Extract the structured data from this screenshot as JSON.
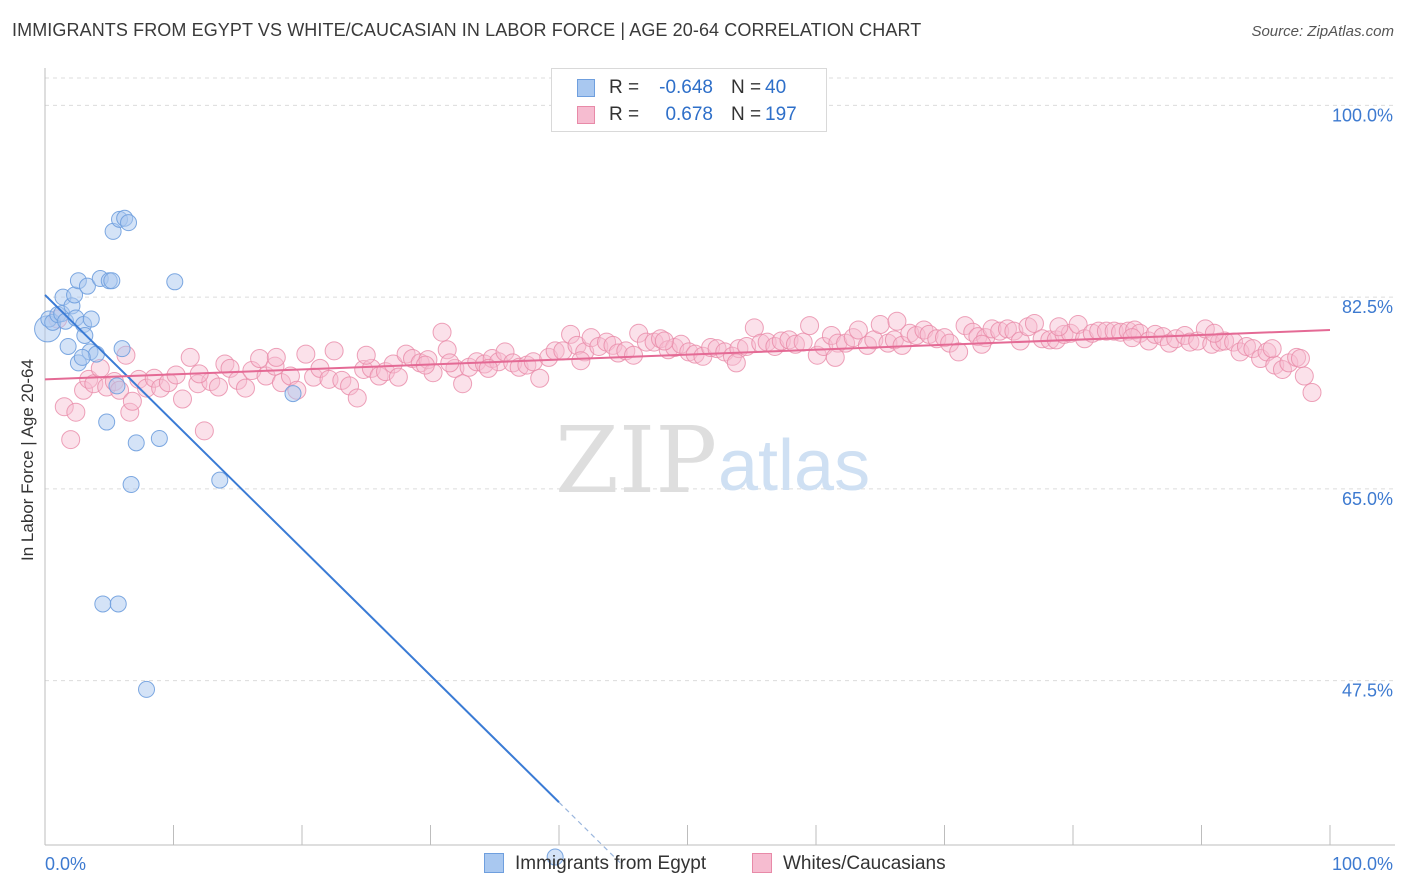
{
  "title": "IMMIGRANTS FROM EGYPT VS WHITE/CAUCASIAN IN LABOR FORCE | AGE 20-64 CORRELATION CHART",
  "source": "Source: ZipAtlas.com",
  "watermark": {
    "zip": "ZIP",
    "atlas": "atlas"
  },
  "legend": {
    "rows": [
      {
        "r_label": "R =",
        "r_value": "-0.648",
        "n_label": "N =",
        "n_value": "40",
        "color": "#a9c8f0",
        "border": "#6f9fde"
      },
      {
        "r_label": "R =",
        "r_value": "0.678",
        "n_label": "N =",
        "n_value": "197",
        "color": "#f6bcd0",
        "border": "#e88aa8"
      }
    ]
  },
  "bottom_legend": [
    {
      "label": "Immigrants from Egypt",
      "color": "#a9c8f0",
      "border": "#6f9fde"
    },
    {
      "label": "Whites/Caucasians",
      "color": "#f6bcd0",
      "border": "#e88aa8"
    }
  ],
  "chart_data": {
    "type": "scatter",
    "xlabel": "",
    "ylabel": "In Labor Force | Age 20-64",
    "xlim": [
      0,
      100
    ],
    "ylim": [
      32.5,
      102.5
    ],
    "x_tick_labels": [
      "0.0%",
      "100.0%"
    ],
    "y_ticks": [
      47.5,
      65.0,
      82.5,
      100.0
    ],
    "y_tick_labels": [
      "47.5%",
      "65.0%",
      "82.5%",
      "100.0%"
    ],
    "grid": true,
    "colors": {
      "egypt": "#6f9fde",
      "egypt_fill": "#a9c8f0",
      "egypt_line": "#3a7bd5",
      "white": "#e88aa8",
      "white_fill": "#f6bcd0",
      "white_line": "#e46a95",
      "axis_text": "#3d7ad0"
    },
    "series": [
      {
        "name": "Immigrants from Egypt",
        "points": [
          [
            0.2,
            79.6
          ],
          [
            0.3,
            80.5
          ],
          [
            0.6,
            80.2
          ],
          [
            1.0,
            80.9
          ],
          [
            1.3,
            81.0
          ],
          [
            1.6,
            80.3
          ],
          [
            1.4,
            82.5
          ],
          [
            2.1,
            81.7
          ],
          [
            2.3,
            82.7
          ],
          [
            2.4,
            80.6
          ],
          [
            2.6,
            76.5
          ],
          [
            2.6,
            84.0
          ],
          [
            3.0,
            80.0
          ],
          [
            3.1,
            79.0
          ],
          [
            3.3,
            83.5
          ],
          [
            3.5,
            77.5
          ],
          [
            3.6,
            80.5
          ],
          [
            4.0,
            77.3
          ],
          [
            4.3,
            84.2
          ],
          [
            4.8,
            71.1
          ],
          [
            5.0,
            84.0
          ],
          [
            5.2,
            84.0
          ],
          [
            5.3,
            88.5
          ],
          [
            5.6,
            74.4
          ],
          [
            5.8,
            89.6
          ],
          [
            6.2,
            89.7
          ],
          [
            6.0,
            77.8
          ],
          [
            6.5,
            89.3
          ],
          [
            6.7,
            65.4
          ],
          [
            7.1,
            69.2
          ],
          [
            4.5,
            54.5
          ],
          [
            5.7,
            54.5
          ],
          [
            7.9,
            46.7
          ],
          [
            8.9,
            69.6
          ],
          [
            10.1,
            83.9
          ],
          [
            13.6,
            65.8
          ],
          [
            19.3,
            73.7
          ],
          [
            39.7,
            31.4
          ],
          [
            1.8,
            78.0
          ],
          [
            2.9,
            77.0
          ]
        ]
      },
      {
        "name": "Whites/Caucasians",
        "points": [
          [
            1.5,
            72.5
          ],
          [
            2.0,
            69.5
          ],
          [
            2.4,
            72.0
          ],
          [
            3.0,
            74.0
          ],
          [
            3.4,
            75.0
          ],
          [
            3.8,
            74.6
          ],
          [
            4.3,
            76.0
          ],
          [
            4.8,
            74.3
          ],
          [
            5.4,
            74.8
          ],
          [
            5.8,
            74.0
          ],
          [
            6.3,
            77.2
          ],
          [
            6.6,
            72.0
          ],
          [
            7.3,
            75.0
          ],
          [
            7.9,
            74.2
          ],
          [
            8.5,
            75.1
          ],
          [
            9.0,
            74.2
          ],
          [
            9.6,
            74.7
          ],
          [
            10.2,
            75.4
          ],
          [
            10.7,
            73.2
          ],
          [
            11.3,
            77.0
          ],
          [
            11.9,
            74.6
          ],
          [
            12.4,
            70.3
          ],
          [
            12.9,
            74.8
          ],
          [
            13.5,
            74.3
          ],
          [
            14.0,
            76.4
          ],
          [
            14.4,
            76.0
          ],
          [
            15.0,
            74.9
          ],
          [
            15.6,
            74.2
          ],
          [
            16.1,
            75.8
          ],
          [
            16.7,
            76.9
          ],
          [
            17.2,
            75.3
          ],
          [
            17.9,
            76.2
          ],
          [
            18.4,
            74.7
          ],
          [
            19.1,
            75.3
          ],
          [
            19.6,
            74.0
          ],
          [
            20.3,
            77.3
          ],
          [
            20.9,
            75.2
          ],
          [
            21.4,
            76.0
          ],
          [
            22.1,
            75.0
          ],
          [
            22.5,
            77.6
          ],
          [
            23.1,
            74.9
          ],
          [
            23.7,
            74.4
          ],
          [
            24.3,
            73.3
          ],
          [
            24.8,
            75.9
          ],
          [
            25.4,
            76.0
          ],
          [
            26.0,
            75.3
          ],
          [
            26.5,
            75.7
          ],
          [
            27.1,
            76.4
          ],
          [
            27.5,
            75.2
          ],
          [
            28.1,
            77.3
          ],
          [
            28.6,
            76.9
          ],
          [
            29.2,
            76.5
          ],
          [
            29.8,
            76.8
          ],
          [
            30.2,
            75.6
          ],
          [
            30.9,
            79.3
          ],
          [
            31.3,
            77.7
          ],
          [
            31.9,
            76.0
          ],
          [
            32.5,
            74.6
          ],
          [
            33.0,
            76.1
          ],
          [
            33.6,
            76.6
          ],
          [
            34.2,
            76.4
          ],
          [
            34.8,
            76.9
          ],
          [
            35.3,
            76.6
          ],
          [
            35.8,
            77.5
          ],
          [
            36.4,
            76.5
          ],
          [
            36.9,
            76.1
          ],
          [
            37.5,
            76.3
          ],
          [
            38.0,
            76.6
          ],
          [
            38.5,
            75.1
          ],
          [
            39.2,
            77.0
          ],
          [
            39.7,
            77.6
          ],
          [
            40.3,
            77.6
          ],
          [
            40.9,
            79.1
          ],
          [
            41.4,
            78.1
          ],
          [
            42.0,
            77.5
          ],
          [
            42.5,
            78.8
          ],
          [
            43.1,
            78.0
          ],
          [
            43.7,
            78.4
          ],
          [
            44.2,
            78.1
          ],
          [
            44.6,
            77.4
          ],
          [
            45.2,
            77.6
          ],
          [
            45.8,
            77.2
          ],
          [
            46.2,
            79.2
          ],
          [
            46.8,
            78.4
          ],
          [
            47.4,
            78.4
          ],
          [
            47.9,
            78.7
          ],
          [
            48.5,
            77.7
          ],
          [
            49.0,
            77.9
          ],
          [
            49.5,
            78.2
          ],
          [
            50.1,
            77.5
          ],
          [
            50.6,
            77.3
          ],
          [
            51.2,
            77.1
          ],
          [
            51.8,
            77.9
          ],
          [
            52.3,
            77.8
          ],
          [
            52.9,
            77.5
          ],
          [
            53.5,
            77.1
          ],
          [
            54.0,
            77.8
          ],
          [
            54.6,
            78.0
          ],
          [
            55.2,
            79.7
          ],
          [
            55.7,
            78.3
          ],
          [
            56.2,
            78.4
          ],
          [
            56.8,
            78.0
          ],
          [
            57.3,
            78.5
          ],
          [
            57.9,
            78.6
          ],
          [
            58.4,
            78.2
          ],
          [
            59.0,
            78.4
          ],
          [
            59.5,
            79.9
          ],
          [
            60.1,
            77.2
          ],
          [
            60.6,
            78.0
          ],
          [
            61.2,
            79.0
          ],
          [
            61.7,
            78.3
          ],
          [
            62.3,
            78.3
          ],
          [
            62.9,
            78.8
          ],
          [
            63.3,
            79.5
          ],
          [
            64.0,
            78.1
          ],
          [
            64.5,
            78.6
          ],
          [
            65.0,
            80.0
          ],
          [
            65.6,
            78.3
          ],
          [
            66.1,
            78.6
          ],
          [
            66.7,
            78.1
          ],
          [
            67.3,
            79.2
          ],
          [
            67.8,
            79.0
          ],
          [
            68.4,
            79.5
          ],
          [
            68.8,
            79.1
          ],
          [
            69.4,
            78.7
          ],
          [
            70.0,
            78.8
          ],
          [
            70.4,
            78.3
          ],
          [
            71.1,
            77.5
          ],
          [
            71.6,
            79.9
          ],
          [
            72.2,
            79.3
          ],
          [
            72.6,
            78.9
          ],
          [
            73.2,
            78.8
          ],
          [
            73.7,
            79.6
          ],
          [
            74.3,
            79.4
          ],
          [
            74.9,
            79.6
          ],
          [
            75.4,
            79.4
          ],
          [
            75.9,
            78.5
          ],
          [
            76.5,
            79.8
          ],
          [
            77.0,
            80.1
          ],
          [
            77.6,
            78.7
          ],
          [
            78.2,
            78.6
          ],
          [
            78.7,
            78.6
          ],
          [
            79.3,
            79.1
          ],
          [
            79.8,
            79.2
          ],
          [
            80.4,
            80.0
          ],
          [
            80.9,
            78.7
          ],
          [
            81.5,
            79.2
          ],
          [
            82.0,
            79.4
          ],
          [
            82.6,
            79.4
          ],
          [
            83.2,
            79.4
          ],
          [
            83.7,
            79.3
          ],
          [
            84.3,
            79.4
          ],
          [
            84.8,
            79.5
          ],
          [
            85.2,
            79.2
          ],
          [
            85.9,
            78.5
          ],
          [
            86.4,
            79.1
          ],
          [
            87.0,
            78.9
          ],
          [
            87.5,
            78.3
          ],
          [
            88.0,
            78.7
          ],
          [
            88.7,
            79.0
          ],
          [
            89.1,
            78.4
          ],
          [
            89.7,
            78.5
          ],
          [
            90.3,
            79.6
          ],
          [
            90.8,
            78.2
          ],
          [
            91.4,
            78.4
          ],
          [
            91.8,
            78.5
          ],
          [
            92.5,
            78.4
          ],
          [
            93.0,
            77.5
          ],
          [
            93.5,
            78.0
          ],
          [
            94.0,
            77.8
          ],
          [
            94.6,
            76.9
          ],
          [
            95.1,
            77.5
          ],
          [
            95.7,
            76.3
          ],
          [
            96.3,
            75.9
          ],
          [
            96.8,
            76.5
          ],
          [
            97.4,
            77.0
          ],
          [
            98.0,
            75.3
          ],
          [
            98.6,
            73.8
          ],
          [
            1.0,
            80.5
          ],
          [
            6.8,
            73.0
          ],
          [
            12.0,
            75.5
          ],
          [
            18.0,
            77.0
          ],
          [
            25.0,
            77.2
          ],
          [
            31.5,
            76.5
          ],
          [
            34.5,
            76.0
          ],
          [
            41.7,
            76.7
          ],
          [
            48.2,
            78.5
          ],
          [
            53.8,
            76.5
          ],
          [
            61.5,
            77.0
          ],
          [
            66.3,
            80.3
          ],
          [
            72.9,
            78.2
          ],
          [
            78.9,
            79.8
          ],
          [
            84.6,
            78.8
          ],
          [
            91.0,
            79.2
          ],
          [
            95.5,
            77.8
          ],
          [
            97.7,
            76.9
          ],
          [
            29.6,
            76.3
          ]
        ]
      }
    ],
    "trendlines": [
      {
        "series": "Immigrants from Egypt",
        "from": [
          0.0,
          82.7
        ],
        "to": [
          40.0,
          36.4
        ],
        "dashed_to": [
          45.0,
          30.6
        ]
      },
      {
        "series": "Whites/Caucasians",
        "from": [
          0.0,
          75.0
        ],
        "to": [
          100.0,
          79.5
        ]
      }
    ]
  }
}
